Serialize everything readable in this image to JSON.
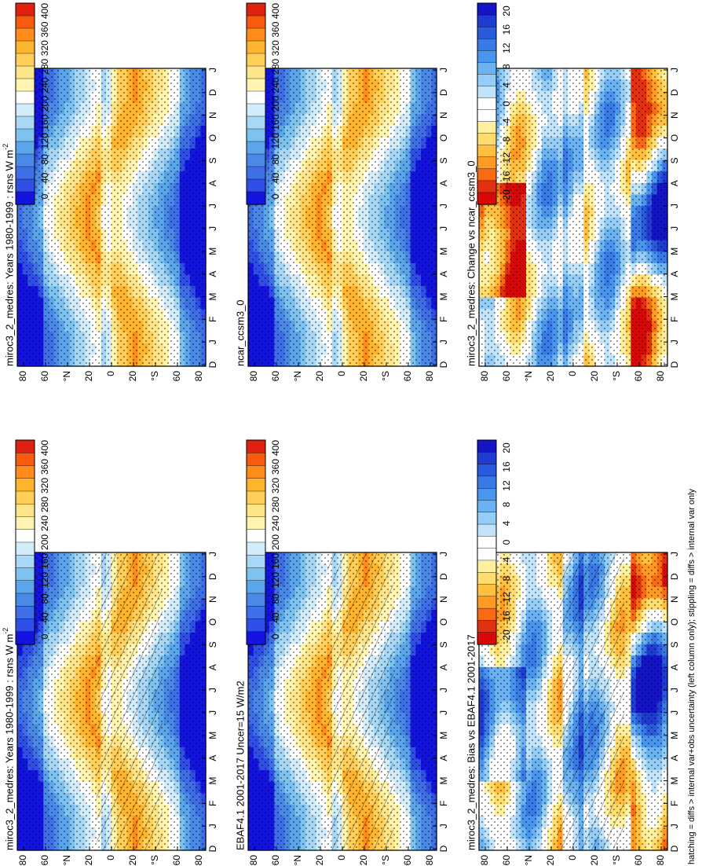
{
  "footer_note": "hatching = diffs > internal var+obs uncertainty (left column only); stippling = diffs > internal var only",
  "chart_data": [
    {
      "type": "heatmap",
      "title": "miroc3_2_medres: Years 1980-1999 : rsns W m",
      "title_sup": "-2",
      "x": [
        "J",
        "F",
        "M",
        "A",
        "M",
        "J",
        "J",
        "A",
        "S",
        "O",
        "N",
        "D",
        "J"
      ],
      "x_start_label": "D",
      "y_ticks": [
        "80",
        "60",
        "°N",
        "20",
        "0",
        "20",
        "°S",
        "60",
        "80"
      ],
      "colorbar": [
        "400",
        "360",
        "320",
        "280",
        "240",
        "200",
        "160",
        "120",
        "80",
        "40",
        "0"
      ],
      "field": "absolute",
      "hatched": true
    },
    {
      "type": "heatmap",
      "title": "miroc3_2_medres: Years 1980-1999 : rsns W m",
      "title_sup": "-2",
      "x": [
        "J",
        "F",
        "M",
        "A",
        "M",
        "J",
        "J",
        "A",
        "S",
        "O",
        "N",
        "D",
        "J"
      ],
      "x_start_label": "D",
      "y_ticks": [
        "80",
        "60",
        "°N",
        "20",
        "0",
        "20",
        "°S",
        "60",
        "80"
      ],
      "colorbar": [
        "400",
        "360",
        "320",
        "280",
        "240",
        "200",
        "160",
        "120",
        "80",
        "40",
        "0"
      ],
      "field": "absolute",
      "hatched": false
    },
    {
      "type": "heatmap",
      "title": "EBAF4.1 2001-2017 Uncer=15 W/m2",
      "title_sup": "",
      "x": [
        "J",
        "F",
        "M",
        "A",
        "M",
        "J",
        "J",
        "A",
        "S",
        "O",
        "N",
        "D",
        "J"
      ],
      "x_start_label": "D",
      "y_ticks": [
        "80",
        "60",
        "°N",
        "20",
        "0",
        "20",
        "°S",
        "60",
        "80"
      ],
      "colorbar": [
        "400",
        "360",
        "320",
        "280",
        "240",
        "200",
        "160",
        "120",
        "80",
        "40",
        "0"
      ],
      "field": "absolute",
      "hatched": true
    },
    {
      "type": "heatmap",
      "title": "ncar_ccsm3_0",
      "title_sup": "",
      "x": [
        "J",
        "F",
        "M",
        "A",
        "M",
        "J",
        "J",
        "A",
        "S",
        "O",
        "N",
        "D",
        "J"
      ],
      "x_start_label": "D",
      "y_ticks": [
        "80",
        "60",
        "°N",
        "20",
        "0",
        "20",
        "°S",
        "60",
        "80"
      ],
      "colorbar": [
        "400",
        "360",
        "320",
        "280",
        "240",
        "200",
        "160",
        "120",
        "80",
        "40",
        "0"
      ],
      "field": "absolute",
      "hatched": false
    },
    {
      "type": "heatmap",
      "title": "miroc3_2_medres: Bias vs EBAF4.1 2001-2017",
      "title_sup": "",
      "x": [
        "J",
        "F",
        "M",
        "A",
        "M",
        "J",
        "J",
        "A",
        "S",
        "O",
        "N",
        "D",
        "J"
      ],
      "x_start_label": "D",
      "y_ticks": [
        "80",
        "60",
        "°N",
        "20",
        "0",
        "20",
        "°S",
        "60",
        "80"
      ],
      "colorbar": [
        "20",
        "16",
        "12",
        "8",
        "4",
        "0",
        "-4",
        "-8",
        "-12",
        "-16",
        "-20"
      ],
      "field": "bias",
      "hatched": true
    },
    {
      "type": "heatmap",
      "title": "miroc3_2_medres: Change vs ncar_ccsm3_0",
      "title_sup": "",
      "x": [
        "J",
        "F",
        "M",
        "A",
        "M",
        "J",
        "J",
        "A",
        "S",
        "O",
        "N",
        "D",
        "J"
      ],
      "x_start_label": "D",
      "y_ticks": [
        "80",
        "60",
        "°N",
        "20",
        "0",
        "20",
        "°S",
        "60",
        "80"
      ],
      "colorbar": [
        "20",
        "16",
        "12",
        "8",
        "4",
        "0",
        "-4",
        "-8",
        "-12",
        "-16",
        "-20"
      ],
      "field": "change",
      "hatched": false
    }
  ],
  "colors": {
    "abs_ramp": [
      "#1414e0",
      "#2f4fe6",
      "#3e6fe6",
      "#4a8ae6",
      "#5ba5eb",
      "#7ec2f0",
      "#a8d8f5",
      "#d2ecfa",
      "#ffffff",
      "#fff4b0",
      "#ffe58a",
      "#ffcf5a",
      "#ffb42e",
      "#ff8c1a",
      "#f85a10",
      "#e02010"
    ],
    "diff_ramp": [
      "#1414c8",
      "#1e3cd2",
      "#2a5adc",
      "#3a7ae6",
      "#4a96ee",
      "#6ab2f2",
      "#94cdf6",
      "#c2e4fa",
      "#ffffff",
      "#ffffff",
      "#fff0a0",
      "#ffdc6e",
      "#ffc040",
      "#ff9a22",
      "#f86a14",
      "#e23010",
      "#d80808"
    ]
  }
}
